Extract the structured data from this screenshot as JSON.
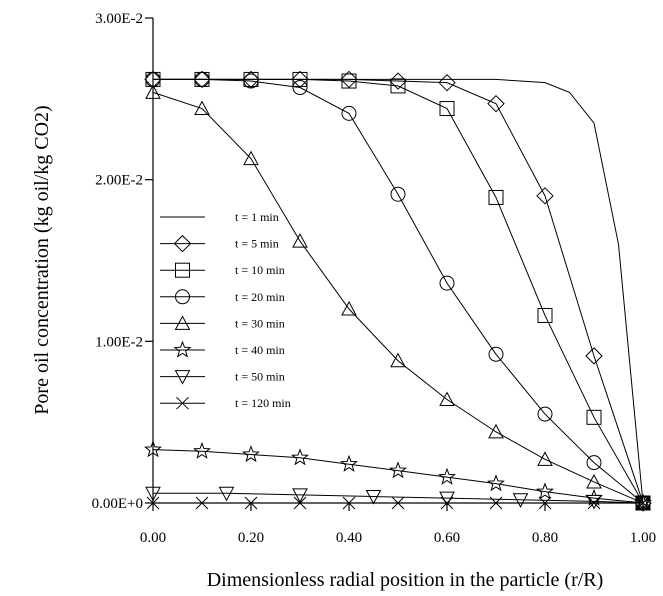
{
  "chart_data": {
    "type": "line",
    "xlabel": "Dimensionless radial position in the particle (r/R)",
    "ylabel": "Pore oil concentration (kg oil/kg CO2)",
    "xlim": [
      0,
      1
    ],
    "ylim": [
      0,
      0.03
    ],
    "x_ticks": [
      {
        "value": 0.0,
        "label": "0.00"
      },
      {
        "value": 0.2,
        "label": "0.20"
      },
      {
        "value": 0.4,
        "label": "0.40"
      },
      {
        "value": 0.6,
        "label": "0.60"
      },
      {
        "value": 0.8,
        "label": "0.80"
      },
      {
        "value": 1.0,
        "label": "1.00"
      }
    ],
    "y_ticks": [
      {
        "value": 0.0,
        "label": "0.00E+0"
      },
      {
        "value": 0.01,
        "label": "1.00E-2"
      },
      {
        "value": 0.02,
        "label": "2.00E-2"
      },
      {
        "value": 0.03,
        "label": "3.00E-2"
      }
    ],
    "grid": false,
    "legend_position": "left",
    "series": [
      {
        "name": "t = 1 min",
        "marker": "none",
        "x": [
          0,
          0.1,
          0.2,
          0.3,
          0.4,
          0.5,
          0.6,
          0.7,
          0.75,
          0.8,
          0.85,
          0.9,
          0.95,
          1.0
        ],
        "y": [
          0.0262,
          0.0262,
          0.0262,
          0.0262,
          0.0262,
          0.0262,
          0.0262,
          0.0262,
          0.0261,
          0.026,
          0.0254,
          0.0235,
          0.016,
          0.0
        ]
      },
      {
        "name": "t = 5 min",
        "marker": "diamond",
        "x": [
          0,
          0.1,
          0.2,
          0.3,
          0.4,
          0.5,
          0.6,
          0.7,
          0.8,
          0.9,
          1.0
        ],
        "y": [
          0.0262,
          0.0262,
          0.0262,
          0.0262,
          0.0262,
          0.0261,
          0.026,
          0.0247,
          0.019,
          0.0091,
          0.0
        ]
      },
      {
        "name": "t = 10 min",
        "marker": "square",
        "x": [
          0,
          0.1,
          0.2,
          0.3,
          0.4,
          0.5,
          0.6,
          0.7,
          0.8,
          0.9,
          1.0
        ],
        "y": [
          0.0262,
          0.0262,
          0.0262,
          0.0262,
          0.0261,
          0.0258,
          0.0244,
          0.0189,
          0.0116,
          0.0053,
          0.0
        ]
      },
      {
        "name": "t = 20 min",
        "marker": "circle",
        "x": [
          0,
          0.1,
          0.2,
          0.3,
          0.4,
          0.5,
          0.6,
          0.7,
          0.8,
          0.9,
          1.0
        ],
        "y": [
          0.0262,
          0.0262,
          0.0261,
          0.0257,
          0.0241,
          0.0191,
          0.0136,
          0.0092,
          0.0055,
          0.0025,
          0.0
        ]
      },
      {
        "name": "t = 30 min",
        "marker": "triangle-up",
        "x": [
          0,
          0.1,
          0.2,
          0.3,
          0.4,
          0.5,
          0.6,
          0.7,
          0.8,
          0.9,
          1.0
        ],
        "y": [
          0.0254,
          0.0244,
          0.0213,
          0.0162,
          0.012,
          0.0088,
          0.0064,
          0.0044,
          0.0027,
          0.0013,
          0.0
        ]
      },
      {
        "name": "t = 40 min",
        "marker": "star",
        "x": [
          0,
          0.1,
          0.2,
          0.3,
          0.4,
          0.5,
          0.6,
          0.7,
          0.8,
          0.9,
          1.0
        ],
        "y": [
          0.0033,
          0.0032,
          0.003,
          0.0028,
          0.0024,
          0.002,
          0.0016,
          0.0012,
          0.0007,
          0.0003,
          0.0
        ]
      },
      {
        "name": "t = 50 min",
        "marker": "triangle-down",
        "x": [
          0,
          0.15,
          0.3,
          0.45,
          0.6,
          0.75,
          0.9,
          1.0
        ],
        "y": [
          0.0006,
          0.0006,
          0.0005,
          0.0004,
          0.0003,
          0.0002,
          0.0001,
          0.0
        ]
      },
      {
        "name": "t = 120 min",
        "marker": "x",
        "x": [
          0,
          0.1,
          0.2,
          0.3,
          0.4,
          0.5,
          0.6,
          0.7,
          0.8,
          0.9,
          1.0
        ],
        "y": [
          0.0,
          0.0,
          0.0,
          0.0,
          0.0,
          0.0,
          0.0,
          0.0,
          0.0,
          0.0,
          0.0
        ]
      }
    ]
  }
}
